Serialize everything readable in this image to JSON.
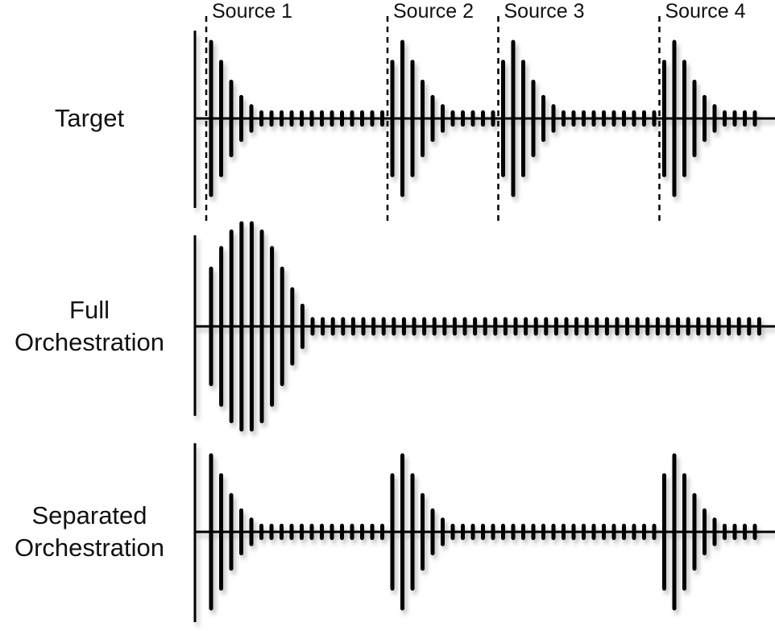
{
  "rows": [
    {
      "label": [
        "Target"
      ],
      "bursts": [
        {
          "start": 0,
          "amps": [
            1.0,
            0.74,
            0.48,
            0.28,
            0.16
          ]
        },
        {
          "start": 9,
          "amps": [
            0.74,
            1.0,
            0.74,
            0.48,
            0.28,
            0.16
          ]
        },
        {
          "start": 14,
          "amps": [
            0.74,
            1.0,
            0.74,
            0.48,
            0.28,
            0.16
          ]
        },
        {
          "start": 22,
          "amps": [
            0.74,
            1.0,
            0.74,
            0.48,
            0.28,
            0.16
          ]
        }
      ],
      "noise": 0.08
    },
    {
      "label": [
        "Full",
        "Orchestration"
      ],
      "bursts": [
        {
          "start": 0,
          "amps": [
            0.56,
            0.76,
            0.92,
            1.0,
            1.0,
            0.92,
            0.76,
            0.56,
            0.36,
            0.2
          ]
        }
      ],
      "noise": 0.07
    },
    {
      "label": [
        "Separated",
        "Orchestration"
      ],
      "bursts": [
        {
          "start": 0,
          "amps": [
            1.0,
            0.74,
            0.48,
            0.28,
            0.16
          ]
        },
        {
          "start": 9,
          "amps": [
            0.74,
            1.0,
            0.74,
            0.48,
            0.28,
            0.16
          ]
        },
        {
          "start": 22,
          "amps": [
            0.74,
            1.0,
            0.74,
            0.48,
            0.28,
            0.16
          ]
        }
      ],
      "noise": 0.08
    }
  ],
  "sources": [
    {
      "label": "Source 1",
      "start": 0
    },
    {
      "label": "Source 2",
      "start": 9
    },
    {
      "label": "Source 3",
      "start": 14
    },
    {
      "label": "Source 4",
      "start": 22
    }
  ],
  "pulse_count": 28
}
